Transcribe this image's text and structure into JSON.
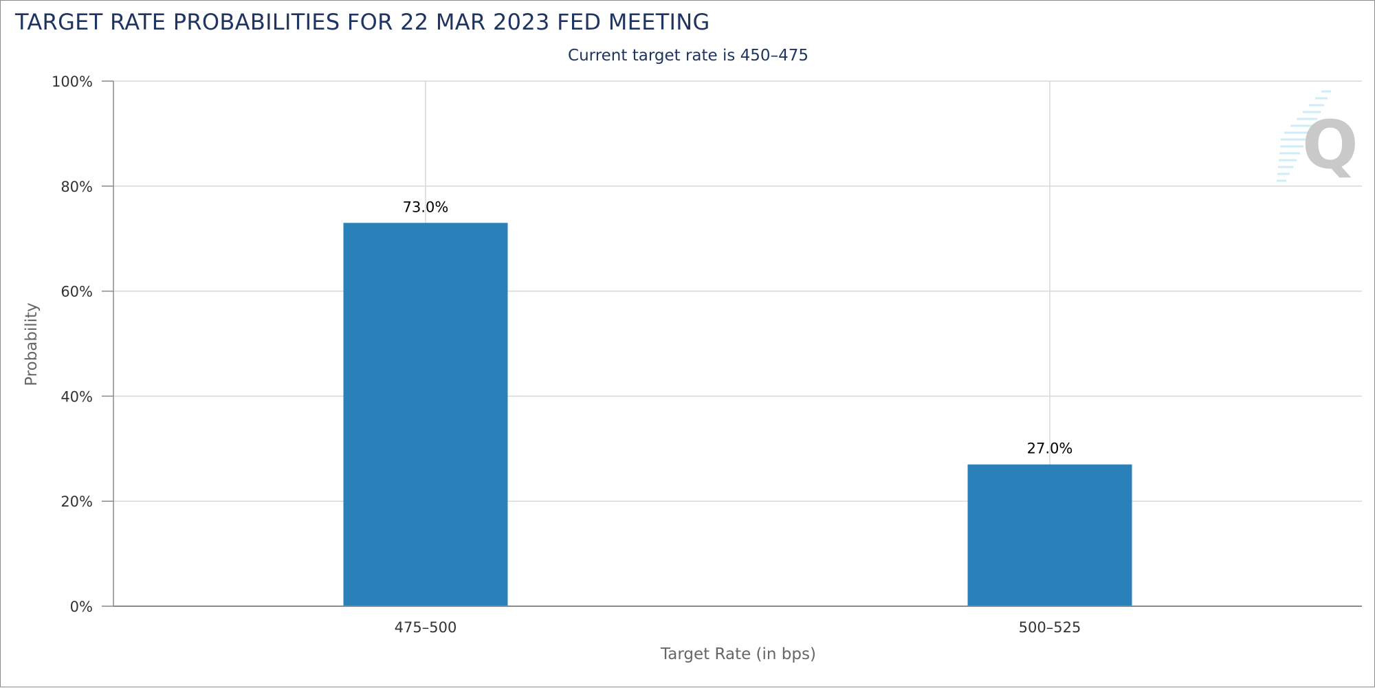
{
  "chart_data": {
    "type": "bar",
    "title": "TARGET RATE PROBABILITIES FOR 22 MAR 2023 FED MEETING",
    "subtitle": "Current target rate is 450–475",
    "xlabel": "Target Rate (in bps)",
    "ylabel": "Probability",
    "categories": [
      "475–500",
      "500–525"
    ],
    "values": [
      73.0,
      27.0
    ],
    "data_labels": [
      "73.0%",
      "27.0%"
    ],
    "ylim": [
      0,
      100
    ],
    "yticks": [
      0,
      20,
      40,
      60,
      80,
      100
    ],
    "ytick_labels": [
      "0%",
      "20%",
      "40%",
      "60%",
      "80%",
      "100%"
    ],
    "grid": true,
    "legend": "none",
    "bar_color": "#2a80b9",
    "gridline_color": "#d8d8d8",
    "axis_color": "#8a8a8a",
    "watermark_icon": "cme-q-logo-icon"
  }
}
